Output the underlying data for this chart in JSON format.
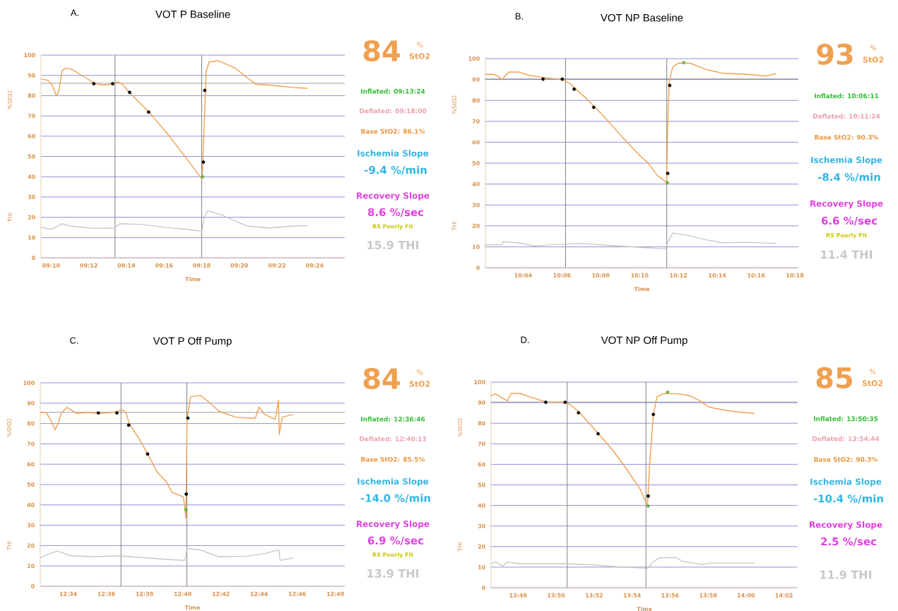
{
  "chart_data": [
    {
      "type": "line",
      "title": "VOT P Baseline",
      "subtitle": "A.",
      "xlabel": "Time",
      "ylabel": "%StO2",
      "xlim": [
        9.1577,
        9.4267
      ],
      "xticks": [
        {
          "value": 9.1667,
          "label": "09:10"
        },
        {
          "value": 9.2,
          "label": "09:12"
        },
        {
          "value": 9.2333,
          "label": "09:14"
        },
        {
          "value": 9.2667,
          "label": "09:16"
        },
        {
          "value": 9.3,
          "label": "09:18"
        },
        {
          "value": 9.3333,
          "label": "09:20"
        },
        {
          "value": 9.3667,
          "label": "09:22"
        },
        {
          "value": 9.4,
          "label": "09:24"
        }
      ],
      "ylim": [
        0,
        100
      ],
      "yticks": [
        0,
        10,
        20,
        30,
        40,
        50,
        60,
        70,
        80,
        90,
        100
      ],
      "grid": "y",
      "ref_lines": [
        {
          "axis": "x",
          "value": 9.2233,
          "color": "#808080"
        },
        {
          "axis": "x",
          "value": 9.3,
          "color": "#808080"
        },
        {
          "axis": "y",
          "value": 86.1,
          "color": "#707080"
        }
      ],
      "annotations": [
        "THI",
        "84",
        "%",
        "StO2",
        "Inflated: 09:13:24",
        "Deflated: 09:18:00",
        "Base StO2: 86.1%",
        "Ischemia Slope",
        "-9.4 %/min",
        "Recovery Slope",
        "8.6 %/sec",
        "RS Poorly Fit",
        "15.9 THI"
      ],
      "series": [
        {
          "color": "#f0a050",
          "x": [
            9.1577,
            9.1638,
            9.168,
            9.1712,
            9.1733,
            9.1763,
            9.1795,
            9.1858,
            9.194,
            9.2003,
            9.2045,
            9.2128,
            9.2212,
            9.2253,
            9.2295,
            9.2357,
            9.2533,
            9.271,
            9.2877,
            9.3002,
            9.3007,
            9.3023,
            9.304,
            9.3065,
            9.3148,
            9.3293,
            9.3397,
            9.348,
            9.3605,
            9.371,
            9.3813,
            9.3938
          ],
          "values": [
            88.2,
            87.6,
            84.8,
            80,
            81.7,
            92.2,
            93.6,
            92.8,
            89.9,
            87.8,
            86.1,
            85.2,
            85.8,
            86.8,
            85.8,
            81.7,
            71.9,
            60.3,
            48.1,
            38.9,
            43.3,
            66.5,
            92,
            96.6,
            97.2,
            93.7,
            89.1,
            85.6,
            85.2,
            84.6,
            84,
            83.6
          ]
        },
        {
          "color": "#c8c8c8",
          "x": [
            9.1577,
            9.167,
            9.1763,
            9.1837,
            9.2045,
            9.2232,
            9.2273,
            9.2462,
            9.2668,
            9.2877,
            9.3002,
            9.3023,
            9.3053,
            9.319,
            9.3397,
            9.3605,
            9.3813,
            9.3938
          ],
          "values": [
            15.1,
            14,
            16.8,
            15.7,
            14.5,
            14.7,
            16.8,
            16.5,
            15.1,
            14,
            13.1,
            20.3,
            23.2,
            20.9,
            15.7,
            14.7,
            15.7,
            15.9
          ]
        },
        {
          "type": "scatter",
          "marker": "circle",
          "color": "#000000",
          "x": [
            9.2045,
            9.2212,
            9.2362,
            9.253,
            9.3015,
            9.3027
          ],
          "values": [
            85.9,
            85.9,
            81.6,
            71.9,
            47.2,
            82.6
          ]
        },
        {
          "type": "scatter",
          "marker": "circle",
          "color": "#6ab04c",
          "x": [
            9.3008
          ],
          "values": [
            40
          ]
        }
      ]
    },
    {
      "type": "line",
      "title": "VOT NP Baseline",
      "subtitle": "B.",
      "xlabel": "Time",
      "ylabel": "%StO2",
      "xlim": [
        10.0343,
        10.303
      ],
      "xticks": [
        {
          "value": 10.0667,
          "label": "10:04"
        },
        {
          "value": 10.1,
          "label": "10:06"
        },
        {
          "value": 10.1333,
          "label": "10:08"
        },
        {
          "value": 10.1667,
          "label": "10:10"
        },
        {
          "value": 10.2,
          "label": "10:12"
        },
        {
          "value": 10.2333,
          "label": "10:14"
        },
        {
          "value": 10.2667,
          "label": "10:16"
        },
        {
          "value": 10.3,
          "label": "10:18"
        }
      ],
      "ylim": [
        0,
        100
      ],
      "yticks": [
        0,
        10,
        20,
        30,
        40,
        50,
        60,
        70,
        80,
        90,
        100
      ],
      "grid": "y",
      "ref_lines": [
        {
          "axis": "x",
          "value": 10.1031,
          "color": "#808080"
        },
        {
          "axis": "x",
          "value": 10.19,
          "color": "#808080"
        },
        {
          "axis": "y",
          "value": 90.3,
          "color": "#707080"
        }
      ],
      "annotations": [
        "THI",
        "93",
        "%",
        "StO2",
        "Inflated: 10:06:11",
        "Deflated: 10:11:24",
        "Base StO2: 90.3%",
        "Ischemia Slope",
        "-8.4 %/min",
        "Recovery Slope",
        "6.6 %/sec",
        "RS Poorly Fit",
        "11.4 THI"
      ],
      "series": [
        {
          "color": "#f0a050",
          "x": [
            10.0343,
            10.0413,
            10.0455,
            10.0485,
            10.0515,
            10.0545,
            10.0627,
            10.0727,
            10.0868,
            10.101,
            10.107,
            10.1192,
            10.1353,
            10.1515,
            10.1677,
            10.1737,
            10.1818,
            10.1898,
            10.1908,
            10.192,
            10.195,
            10.2,
            10.2102,
            10.2242,
            10.2383,
            10.2587,
            10.2747,
            10.2838
          ],
          "values": [
            92.5,
            92.5,
            91.4,
            89.9,
            91.9,
            93.6,
            93.6,
            91.9,
            90.8,
            89.9,
            88,
            81.8,
            72.8,
            62.7,
            53.1,
            50.3,
            44.2,
            40.8,
            67.2,
            88.5,
            95.8,
            97.9,
            97.8,
            94.7,
            93,
            92.5,
            91.7,
            92.8
          ]
        },
        {
          "color": "#c8c8c8",
          "x": [
            10.0343,
            10.0485,
            10.0495,
            10.0627,
            10.0768,
            10.097,
            10.1172,
            10.1475,
            10.1677,
            10.1888,
            10.1908,
            10.195,
            10.208,
            10.2242,
            10.2383,
            10.2587,
            10.2838
          ],
          "values": [
            11,
            11,
            12.4,
            11.9,
            10.4,
            11.2,
            11.6,
            10.4,
            9.7,
            9,
            12.1,
            16.6,
            15.5,
            13.3,
            11.9,
            12.1,
            11.6
          ]
        },
        {
          "type": "scatter",
          "marker": "circle",
          "color": "#000000",
          "x": [
            10.0838,
            10.1003,
            10.1105,
            10.1273,
            10.1908,
            10.1925
          ],
          "values": [
            90.2,
            90.2,
            85.4,
            76.7,
            45.1,
            87.2
          ]
        },
        {
          "type": "scatter",
          "marker": "circle",
          "color": "#6ab04c",
          "x": [
            10.1905,
            10.2045
          ],
          "values": [
            40.6,
            98.1
          ]
        }
      ]
    },
    {
      "type": "line",
      "title": "VOT P Off Pump",
      "subtitle": "C.",
      "xlabel": "Time",
      "ylabel": "%StO2",
      "xlim": [
        12.5423,
        12.8082
      ],
      "xticks": [
        {
          "value": 12.5667,
          "label": "12:34"
        },
        {
          "value": 12.6,
          "label": "12:36"
        },
        {
          "value": 12.6333,
          "label": "12:38"
        },
        {
          "value": 12.6667,
          "label": "12:40"
        },
        {
          "value": 12.7,
          "label": "12:42"
        },
        {
          "value": 12.7333,
          "label": "12:44"
        },
        {
          "value": 12.7667,
          "label": "12:46"
        },
        {
          "value": 12.8,
          "label": "12:48"
        }
      ],
      "ylim": [
        0,
        100
      ],
      "yticks": [
        0,
        10,
        20,
        30,
        40,
        50,
        60,
        70,
        80,
        90,
        100
      ],
      "grid": "y",
      "ref_lines": [
        {
          "axis": "x",
          "value": 12.6128,
          "color": "#808080"
        },
        {
          "axis": "x",
          "value": 12.6703,
          "color": "#808080"
        },
        {
          "axis": "y",
          "value": 85.5,
          "color": "#707080"
        }
      ],
      "annotations": [
        "THI",
        "84",
        "%",
        "StO2",
        "Inflated: 12:36:46",
        "Deflated: 12:40:13",
        "Base StO2: 85.5%",
        "Ischemia Slope",
        "-14.0 %/min",
        "Recovery Slope",
        "6.9 %/sec",
        "RS Poorly Fit",
        "13.9 THI"
      ],
      "series": [
        {
          "color": "#f0a050",
          "x": [
            12.5423,
            12.5472,
            12.5512,
            12.5553,
            12.5585,
            12.5605,
            12.5657,
            12.5738,
            12.5832,
            12.5933,
            12.6057,
            12.614,
            12.617,
            12.6202,
            12.6283,
            12.6365,
            12.6438,
            12.653,
            12.6572,
            12.6673,
            12.6695,
            12.6705,
            12.6735,
            12.6818,
            12.688,
            12.6982,
            12.7127,
            12.7228,
            12.7302,
            12.7332,
            12.7383,
            12.7475,
            12.7503,
            12.751,
            12.7537,
            12.763
          ],
          "values": [
            85.5,
            85.5,
            82.1,
            76.9,
            80.9,
            85,
            87.9,
            85,
            85.5,
            85,
            85.5,
            86.7,
            85.5,
            79.8,
            72.8,
            64.7,
            56.6,
            50.9,
            46.2,
            43.9,
            33.5,
            82.1,
            93.1,
            93.9,
            91.3,
            86.1,
            83.2,
            82.7,
            82.7,
            88.1,
            84.4,
            82.1,
            91.3,
            74.6,
            83.2,
            84.4
          ]
        },
        {
          "color": "#c8c8c8",
          "x": [
            12.5423,
            12.5482,
            12.5573,
            12.5687,
            12.5893,
            12.6118,
            12.6222,
            12.651,
            12.6685,
            12.6705,
            12.6818,
            12.6982,
            12.7228,
            12.7393,
            12.7507,
            12.7517,
            12.763
          ],
          "values": [
            13.9,
            15.6,
            17.3,
            15,
            14.5,
            15,
            14.5,
            13.3,
            12.7,
            18.5,
            17.9,
            14.5,
            14.8,
            16.2,
            17.9,
            12.7,
            13.9
          ]
        },
        {
          "type": "scatter",
          "marker": "circle",
          "color": "#000000",
          "x": [
            12.593,
            12.6092,
            12.6195,
            12.636,
            12.6698,
            12.6712
          ],
          "values": [
            85.2,
            85.2,
            79.2,
            65,
            45.3,
            82.7
          ]
        },
        {
          "type": "scatter",
          "marker": "circle",
          "color": "#6ab04c",
          "x": [
            12.6695
          ],
          "values": [
            37.6
          ]
        }
      ]
    },
    {
      "type": "line",
      "title": "VOT NP Off Pump",
      "subtitle": "D.",
      "xlabel": "Time",
      "ylabel": "%StO2",
      "xlim": [
        13.7763,
        14.0453
      ],
      "xticks": [
        {
          "value": 13.8,
          "label": "13:48"
        },
        {
          "value": 13.8333,
          "label": "13:50"
        },
        {
          "value": 13.8667,
          "label": "13:52"
        },
        {
          "value": 13.9,
          "label": "13:54"
        },
        {
          "value": 13.9333,
          "label": "13:56"
        },
        {
          "value": 13.9667,
          "label": "13:58"
        },
        {
          "value": 14.0,
          "label": "14:00"
        },
        {
          "value": 14.0333,
          "label": "14:02"
        }
      ],
      "ylim": [
        0,
        100
      ],
      "yticks": [
        0,
        10,
        20,
        30,
        40,
        50,
        60,
        70,
        80,
        90,
        100
      ],
      "grid": "y",
      "ref_lines": [
        {
          "axis": "x",
          "value": 13.8431,
          "color": "#808080"
        },
        {
          "axis": "x",
          "value": 13.9122,
          "color": "#808080"
        },
        {
          "axis": "y",
          "value": 90.3,
          "color": "#707080"
        }
      ],
      "annotations": [
        "THI",
        "85",
        "%",
        "StO2",
        "Inflated: 13:50:35",
        "Deflated: 13:54:44",
        "Base StO2: 90.3%",
        "Ischemia Slope",
        "-10.4 %/min",
        "Recovery Slope",
        "2.5 %/sec",
        "11.9 THI"
      ],
      "series": [
        {
          "color": "#f0a050",
          "x": [
            13.7763,
            13.7803,
            13.7865,
            13.7907,
            13.7938,
            13.802,
            13.8103,
            13.8248,
            13.8413,
            13.8465,
            13.8537,
            13.8702,
            13.8827,
            13.895,
            13.9073,
            13.9135,
            13.9157,
            13.9187,
            13.9218,
            13.928,
            13.9405,
            13.9507,
            13.959,
            13.9673,
            13.9797,
            13.9942,
            14.0075
          ],
          "values": [
            93.4,
            94.3,
            92.2,
            90.9,
            94.5,
            94.5,
            92.8,
            90.3,
            90.2,
            88.8,
            85.4,
            75.1,
            67.1,
            57.9,
            47.7,
            39.7,
            62.5,
            84.2,
            92.8,
            94.5,
            94.3,
            93.4,
            91.1,
            87.9,
            86.5,
            85.4,
            84.8
          ]
        },
        {
          "color": "#c8c8c8",
          "x": [
            13.7763,
            13.7803,
            13.7865,
            13.7907,
            13.8,
            13.8103,
            13.8413,
            13.866,
            13.8867,
            13.9135,
            13.9177,
            13.9238,
            13.9383,
            13.9445,
            13.961,
            13.9693,
            14.0075
          ],
          "values": [
            11.7,
            12.5,
            10.5,
            12.5,
            11.7,
            11.7,
            11.7,
            11.1,
            10.2,
            9.4,
            12.2,
            14.5,
            14.7,
            12.8,
            11.3,
            12,
            12
          ]
        },
        {
          "type": "scatter",
          "marker": "circle",
          "color": "#000000",
          "x": [
            13.8243,
            13.8413,
            13.853,
            13.8702,
            13.9142,
            13.9187
          ],
          "values": [
            90.2,
            90.2,
            85.1,
            74.9,
            44.6,
            84.3
          ]
        },
        {
          "type": "scatter",
          "marker": "circle",
          "color": "#6ab04c",
          "x": [
            13.9142,
            13.9312
          ],
          "values": [
            39.7,
            95.1
          ]
        }
      ]
    }
  ]
}
